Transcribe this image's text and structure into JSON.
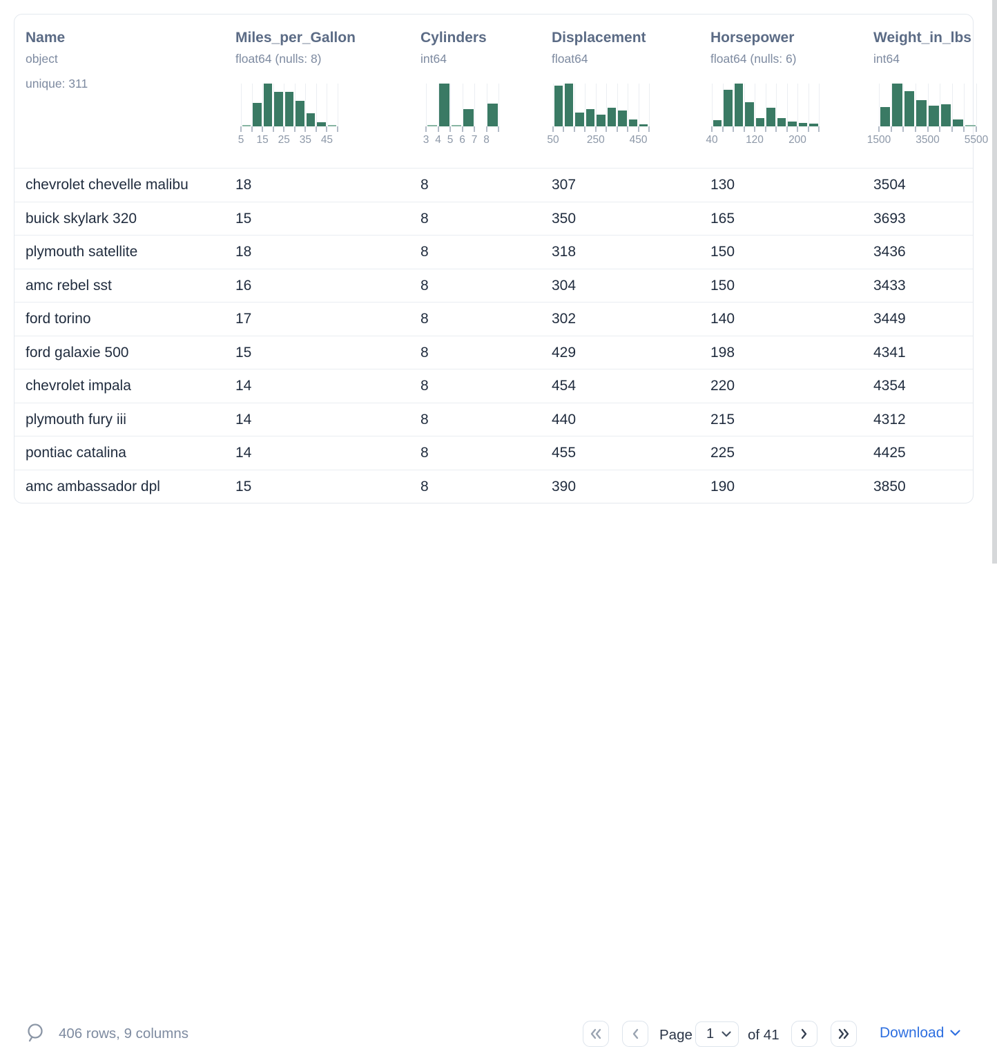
{
  "theme": {
    "bar_color": "#3a7a64",
    "accent_blue": "#2e6fe0",
    "header_text_color": "#5b6b85",
    "meta_text_color": "#7d8aa0",
    "row_text_color": "#1f2b3d"
  },
  "header": {
    "columns": [
      {
        "name": "Name",
        "type": "object",
        "meta": "unique: 311",
        "histogram": null
      },
      {
        "name": "Miles_per_Gallon",
        "type": "float64 (nulls: 8)",
        "histogram": {
          "chart_type": "bar",
          "bins_pct": [
            2,
            55,
            100,
            80,
            80,
            60,
            30,
            10,
            2
          ],
          "tick_labels": [
            "5",
            "15",
            "25",
            "35",
            "45"
          ],
          "label_every": 2
        }
      },
      {
        "name": "Cylinders",
        "type": "int64",
        "histogram": {
          "chart_type": "bar",
          "bins_pct": [
            3,
            100,
            2,
            40,
            0,
            53
          ],
          "tick_labels": [
            "3",
            "4",
            "5",
            "6",
            "7",
            "8"
          ],
          "label_every": 1
        }
      },
      {
        "name": "Displacement",
        "type": "float64",
        "histogram": {
          "chart_type": "bar",
          "bins_pct": [
            95,
            100,
            33,
            40,
            28,
            43,
            37,
            16,
            5
          ],
          "tick_labels": [
            "50",
            "250",
            "450"
          ],
          "label_every": 4
        }
      },
      {
        "name": "Horsepower",
        "type": "float64 (nulls: 6)",
        "histogram": {
          "chart_type": "bar",
          "bins_pct": [
            15,
            85,
            100,
            56,
            20,
            43,
            19,
            11,
            8,
            7
          ],
          "tick_labels": [
            "40",
            "120",
            "200"
          ],
          "label_every": 4
        }
      },
      {
        "name": "Weight_in_lbs",
        "type": "int64",
        "histogram": {
          "chart_type": "bar",
          "bins_pct": [
            45,
            100,
            82,
            62,
            48,
            51,
            16,
            2
          ],
          "tick_labels": [
            "1500",
            "3500",
            "5500"
          ],
          "label_every": 4
        }
      }
    ]
  },
  "rows": [
    [
      "chevrolet chevelle malibu",
      "18",
      "8",
      "307",
      "130",
      "3504"
    ],
    [
      "buick skylark 320",
      "15",
      "8",
      "350",
      "165",
      "3693"
    ],
    [
      "plymouth satellite",
      "18",
      "8",
      "318",
      "150",
      "3436"
    ],
    [
      "amc rebel sst",
      "16",
      "8",
      "304",
      "150",
      "3433"
    ],
    [
      "ford torino",
      "17",
      "8",
      "302",
      "140",
      "3449"
    ],
    [
      "ford galaxie 500",
      "15",
      "8",
      "429",
      "198",
      "4341"
    ],
    [
      "chevrolet impala",
      "14",
      "8",
      "454",
      "220",
      "4354"
    ],
    [
      "plymouth fury iii",
      "14",
      "8",
      "440",
      "215",
      "4312"
    ],
    [
      "pontiac catalina",
      "14",
      "8",
      "455",
      "225",
      "4425"
    ],
    [
      "amc ambassador dpl",
      "15",
      "8",
      "390",
      "190",
      "3850"
    ]
  ],
  "footer": {
    "status": "406 rows, 9 columns",
    "pagination": {
      "page_label": "Page",
      "page_value": "1",
      "total_label": "of 41"
    },
    "download_label": "Download"
  }
}
